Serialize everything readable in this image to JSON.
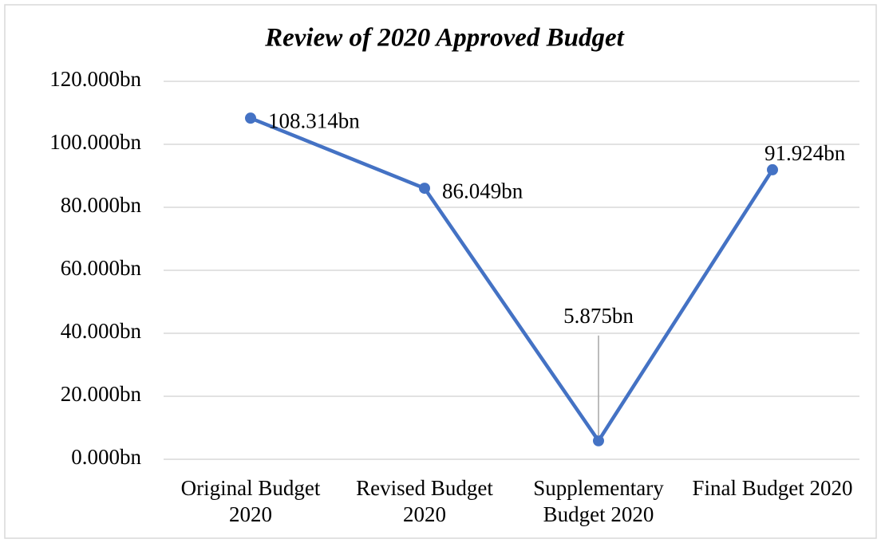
{
  "chart_data": {
    "type": "line",
    "title": "Review of 2020 Approved Budget",
    "categories": [
      "Original Budget 2020",
      "Revised Budget 2020",
      "Supplementary Budget 2020",
      "Final Budget 2020"
    ],
    "series": [
      {
        "name": "Budget",
        "color": "#4472c4",
        "values": [
          108.314,
          86.049,
          5.875,
          91.924
        ],
        "value_labels": [
          "108.314bn",
          "86.049bn",
          "5.875bn",
          "91.924bn"
        ]
      }
    ],
    "ylim": [
      0,
      120
    ],
    "yticks": [
      {
        "value": 0,
        "label": "0.000bn"
      },
      {
        "value": 20,
        "label": "20.000bn"
      },
      {
        "value": 40,
        "label": "40.000bn"
      },
      {
        "value": 60,
        "label": "60.000bn"
      },
      {
        "value": 80,
        "label": "80.000bn"
      },
      {
        "value": 100,
        "label": "100.000bn"
      },
      {
        "value": 120,
        "label": "120.000bn"
      }
    ],
    "grid": true
  }
}
